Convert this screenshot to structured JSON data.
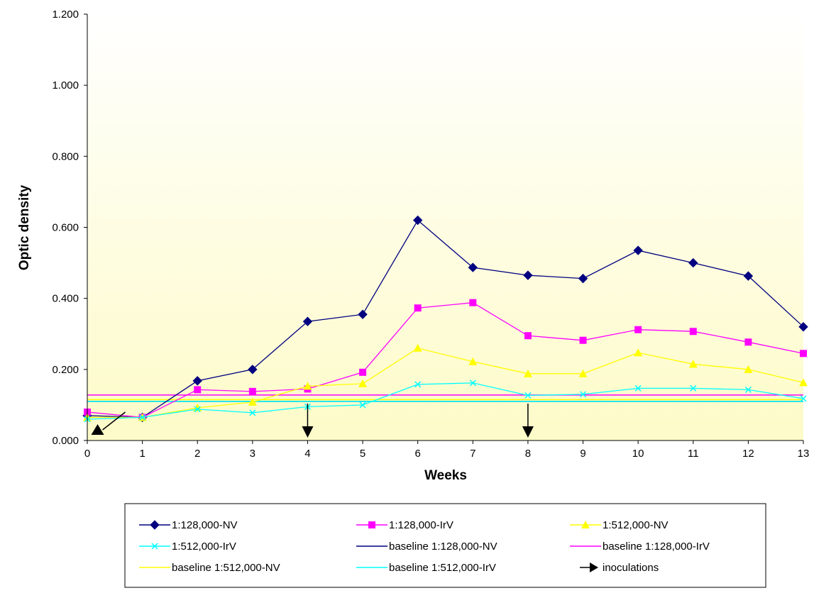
{
  "chart_data": {
    "type": "line",
    "title": "",
    "xlabel": "Weeks",
    "ylabel": "Optic density",
    "xlim": [
      0,
      13
    ],
    "ylim": [
      0,
      1.2
    ],
    "x_ticks": [
      "0",
      "1",
      "2",
      "3",
      "4",
      "5",
      "6",
      "7",
      "8",
      "9",
      "10",
      "11",
      "12",
      "13"
    ],
    "y_ticks": [
      "0.000",
      "0.200",
      "0.400",
      "0.600",
      "0.800",
      "1.000",
      "1.200"
    ],
    "legend_position": "bottom",
    "series": [
      {
        "name": "1:128,000-NV",
        "color": "#000080",
        "marker": "diamond",
        "x": [
          0,
          1,
          2,
          3,
          4,
          5,
          6,
          7,
          8,
          9,
          10,
          11,
          12,
          13
        ],
        "values": [
          0.07,
          0.065,
          0.168,
          0.2,
          0.335,
          0.355,
          0.62,
          0.487,
          0.465,
          0.456,
          0.535,
          0.5,
          0.463,
          0.32
        ]
      },
      {
        "name": "1:128,000-IrV",
        "color": "#FF00FF",
        "marker": "square",
        "x": [
          0,
          1,
          2,
          3,
          4,
          5,
          6,
          7,
          8,
          9,
          10,
          11,
          12,
          13
        ],
        "values": [
          0.08,
          0.065,
          0.143,
          0.138,
          0.145,
          0.192,
          0.373,
          0.388,
          0.295,
          0.282,
          0.312,
          0.307,
          0.277,
          0.245
        ]
      },
      {
        "name": "1:512,000-NV",
        "color": "#FFFF00",
        "marker": "triangle",
        "x": [
          0,
          1,
          2,
          3,
          4,
          5,
          6,
          7,
          8,
          9,
          10,
          11,
          12,
          13
        ],
        "values": [
          0.065,
          0.065,
          0.092,
          0.108,
          0.153,
          0.16,
          0.26,
          0.222,
          0.188,
          0.188,
          0.247,
          0.215,
          0.2,
          0.163
        ]
      },
      {
        "name": "1:512,000-IrV",
        "color": "#00FFFF",
        "marker": "x",
        "x": [
          0,
          1,
          2,
          3,
          4,
          5,
          6,
          7,
          8,
          9,
          10,
          11,
          12,
          13
        ],
        "values": [
          0.06,
          0.065,
          0.088,
          0.078,
          0.095,
          0.1,
          0.158,
          0.162,
          0.127,
          0.13,
          0.147,
          0.147,
          0.143,
          0.118
        ]
      },
      {
        "name": "baseline 1:128,000-NV",
        "color": "#000080",
        "marker": "none",
        "x": [
          0,
          13
        ],
        "values": [
          0.11,
          0.11
        ]
      },
      {
        "name": "baseline 1:128,000-IrV",
        "color": "#FF00FF",
        "marker": "none",
        "x": [
          0,
          13
        ],
        "values": [
          0.128,
          0.128
        ]
      },
      {
        "name": "baseline 1:512,000-NV",
        "color": "#FFFF00",
        "marker": "none",
        "x": [
          0,
          13
        ],
        "values": [
          0.115,
          0.115
        ]
      },
      {
        "name": "baseline 1:512,000-IrV",
        "color": "#00FFFF",
        "marker": "none",
        "x": [
          0,
          13
        ],
        "values": [
          0.11,
          0.11
        ]
      }
    ],
    "inoculations": {
      "name": "inoculations",
      "color": "#000000",
      "weeks": [
        0,
        4,
        8
      ]
    }
  }
}
